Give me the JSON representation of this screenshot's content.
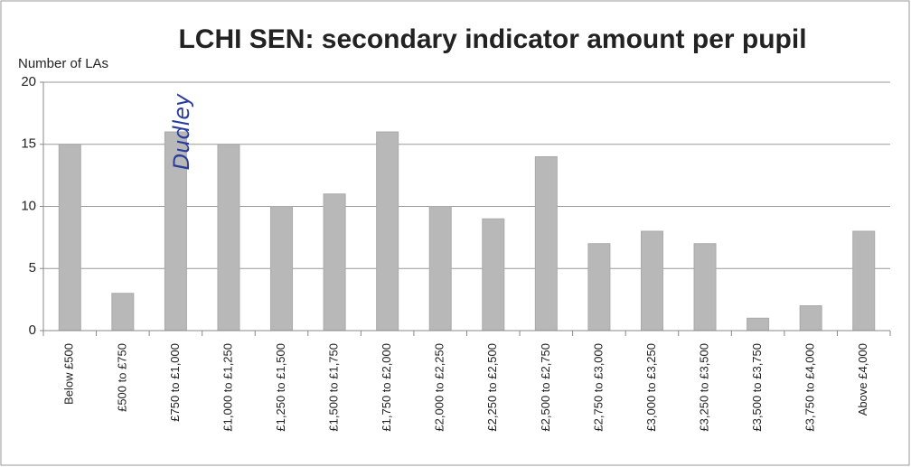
{
  "chart_data": {
    "type": "bar",
    "title": "LCHI SEN: secondary indicator amount per pupil",
    "y_label": "Number of LAs",
    "annotation": "Dudley",
    "categories": [
      "Below £500",
      "£500 to £750",
      "£750 to £1,000",
      "£1,000 to £1,250",
      "£1,250 to £1,500",
      "£1,500 to £1,750",
      "£1,750 to £2,000",
      "£2,000 to £2,250",
      "£2,250 to £2,500",
      "£2,500 to £2,750",
      "£2,750 to £3,000",
      "£3,000 to £3,250",
      "£3,250 to £3,500",
      "£3,500 to £3,750",
      "£3,750 to £4,000",
      "Above £4,000"
    ],
    "values": [
      15,
      3,
      16,
      15,
      10,
      11,
      16,
      10,
      9,
      14,
      7,
      8,
      7,
      1,
      2,
      8
    ],
    "color": "#b8b8b8",
    "ylim": [
      0,
      20
    ],
    "yticks": [
      0,
      5,
      10,
      15,
      20
    ],
    "grid": true
  }
}
